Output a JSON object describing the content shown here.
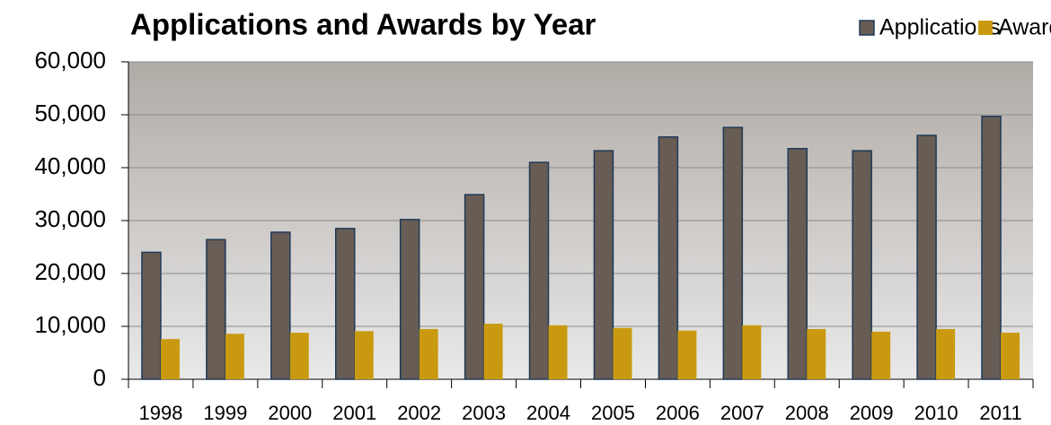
{
  "chart_data": {
    "type": "bar",
    "title": "Applications and Awards by Year",
    "categories": [
      "1998",
      "1999",
      "2000",
      "2001",
      "2002",
      "2003",
      "2004",
      "2005",
      "2006",
      "2007",
      "2008",
      "2009",
      "2010",
      "2011"
    ],
    "series": [
      {
        "name": "Applications",
        "color": "#675d54",
        "values": [
          24000,
          26400,
          27800,
          28500,
          30200,
          34900,
          41000,
          43200,
          45800,
          47600,
          43600,
          43200,
          46100,
          49700
        ]
      },
      {
        "name": "Awards",
        "color": "#c99a10",
        "values": [
          7600,
          8600,
          8800,
          9100,
          9500,
          10500,
          10200,
          9700,
          9200,
          10200,
          9500,
          9000,
          9500,
          8800
        ]
      }
    ],
    "ylim": [
      0,
      60000
    ],
    "yticks": [
      0,
      {
        "value": 10000,
        "label": "10,000"
      },
      {
        "value": 20000,
        "label": "20,000"
      },
      {
        "value": 30000,
        "label": "30,000"
      },
      {
        "value": 40000,
        "label": "40,000"
      },
      {
        "value": 50000,
        "label": "50,000"
      },
      {
        "value": 60000,
        "label": "60,000"
      }
    ],
    "grid": true,
    "legend": "top-right"
  }
}
